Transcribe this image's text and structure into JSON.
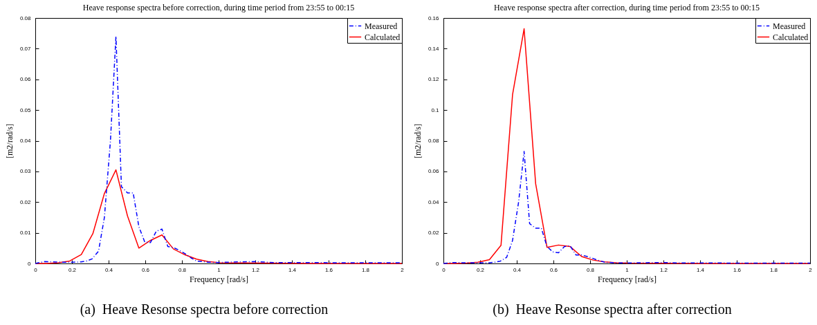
{
  "chart_data": [
    {
      "type": "line",
      "title": "Heave response spectra before correction, during time period from 23:55 to 00:15",
      "xlabel": "Frequency [rad/s]",
      "ylabel": "[m2/rad/s]",
      "xlim": [
        0,
        2
      ],
      "xticks": [
        0,
        0.2,
        0.4,
        0.6,
        0.8,
        1,
        1.2,
        1.4,
        1.6,
        1.8,
        2
      ],
      "ylim": [
        0,
        0.08
      ],
      "yticks": [
        0,
        0.01,
        0.02,
        0.03,
        0.04,
        0.05,
        0.06,
        0.07,
        0.08
      ],
      "grid": false,
      "legend": "top right",
      "annotations": [
        "(a)  Heave Resonse spectra before correction"
      ],
      "series": [
        {
          "name": "Measured",
          "color": "#0000ff",
          "line_style": "dashed",
          "x": [
            0,
            0.05,
            0.1,
            0.15,
            0.2,
            0.25,
            0.28,
            0.31,
            0.345,
            0.377,
            0.41,
            0.44,
            0.47,
            0.503,
            0.534,
            0.565,
            0.597,
            0.628,
            0.66,
            0.691,
            0.723,
            0.754,
            0.785,
            0.817,
            0.85,
            0.88,
            0.942,
            1.0,
            1.1,
            1.2,
            1.3,
            1.5,
            1.7,
            1.9,
            2.0
          ],
          "values": [
            0,
            0.0006,
            0.0005,
            0.0004,
            0.0004,
            0.0005,
            0.0008,
            0.0015,
            0.004,
            0.015,
            0.04,
            0.074,
            0.025,
            0.023,
            0.023,
            0.012,
            0.007,
            0.0068,
            0.0105,
            0.0112,
            0.0055,
            0.0052,
            0.0043,
            0.0032,
            0.0018,
            0.0008,
            0.0004,
            0.0003,
            0.0005,
            0.0006,
            0.0003,
            0.0003,
            0.0002,
            0.0002,
            0.0002
          ]
        },
        {
          "name": "Calculated",
          "color": "#ff0000",
          "line_style": "solid",
          "x": [
            0,
            0.063,
            0.126,
            0.188,
            0.251,
            0.314,
            0.377,
            0.44,
            0.503,
            0.565,
            0.628,
            0.691,
            0.754,
            0.817,
            0.88,
            0.942,
            1.005,
            1.5,
            2.0
          ],
          "values": [
            0,
            0,
            0.0002,
            0.0008,
            0.0029,
            0.0097,
            0.0228,
            0.0305,
            0.0155,
            0.005,
            0.0075,
            0.0093,
            0.0047,
            0.0028,
            0.0014,
            0.0006,
            0.0002,
            0,
            0
          ]
        }
      ]
    },
    {
      "type": "line",
      "title": "Heave response spectra after correction, during time period from 23:55 to 00:15",
      "xlabel": "Frequency [rad/s]",
      "ylabel": "[m2/rad/s]",
      "xlim": [
        0,
        2
      ],
      "xticks": [
        0,
        0.2,
        0.4,
        0.6,
        0.8,
        1,
        1.2,
        1.4,
        1.6,
        1.8,
        2
      ],
      "ylim": [
        0,
        0.16
      ],
      "yticks": [
        0,
        0.02,
        0.04,
        0.06,
        0.08,
        0.1,
        0.12,
        0.14,
        0.16
      ],
      "grid": false,
      "legend": "top right",
      "annotations": [
        "(b)  Heave Resonse spectra after correction"
      ],
      "series": [
        {
          "name": "Measured",
          "color": "#0000ff",
          "line_style": "dashed",
          "x": [
            0,
            0.05,
            0.1,
            0.15,
            0.2,
            0.25,
            0.28,
            0.31,
            0.345,
            0.377,
            0.41,
            0.44,
            0.47,
            0.503,
            0.534,
            0.565,
            0.597,
            0.628,
            0.66,
            0.691,
            0.723,
            0.754,
            0.785,
            0.817,
            0.85,
            0.88,
            0.942,
            1.0,
            1.1,
            1.2,
            1.3,
            1.5,
            1.7,
            1.9,
            2.0
          ],
          "values": [
            0,
            0.0006,
            0.0005,
            0.0004,
            0.0004,
            0.0005,
            0.0008,
            0.0015,
            0.004,
            0.015,
            0.04,
            0.073,
            0.026,
            0.023,
            0.023,
            0.011,
            0.0075,
            0.007,
            0.011,
            0.0115,
            0.0055,
            0.0055,
            0.0045,
            0.0032,
            0.0018,
            0.0008,
            0.0004,
            0.0003,
            0.0005,
            0.0006,
            0.0003,
            0.0003,
            0.0002,
            0.0002,
            0.0002
          ]
        },
        {
          "name": "Calculated",
          "color": "#ff0000",
          "line_style": "solid",
          "x": [
            0,
            0.063,
            0.126,
            0.188,
            0.251,
            0.314,
            0.377,
            0.44,
            0.503,
            0.565,
            0.628,
            0.691,
            0.754,
            0.817,
            0.88,
            0.942,
            1.005,
            1.5,
            2.0
          ],
          "values": [
            0,
            0,
            0.0002,
            0.0008,
            0.0025,
            0.0118,
            0.11,
            0.153,
            0.052,
            0.0105,
            0.012,
            0.011,
            0.0045,
            0.0022,
            0.001,
            0.0005,
            0.0002,
            0,
            0
          ]
        }
      ]
    }
  ]
}
